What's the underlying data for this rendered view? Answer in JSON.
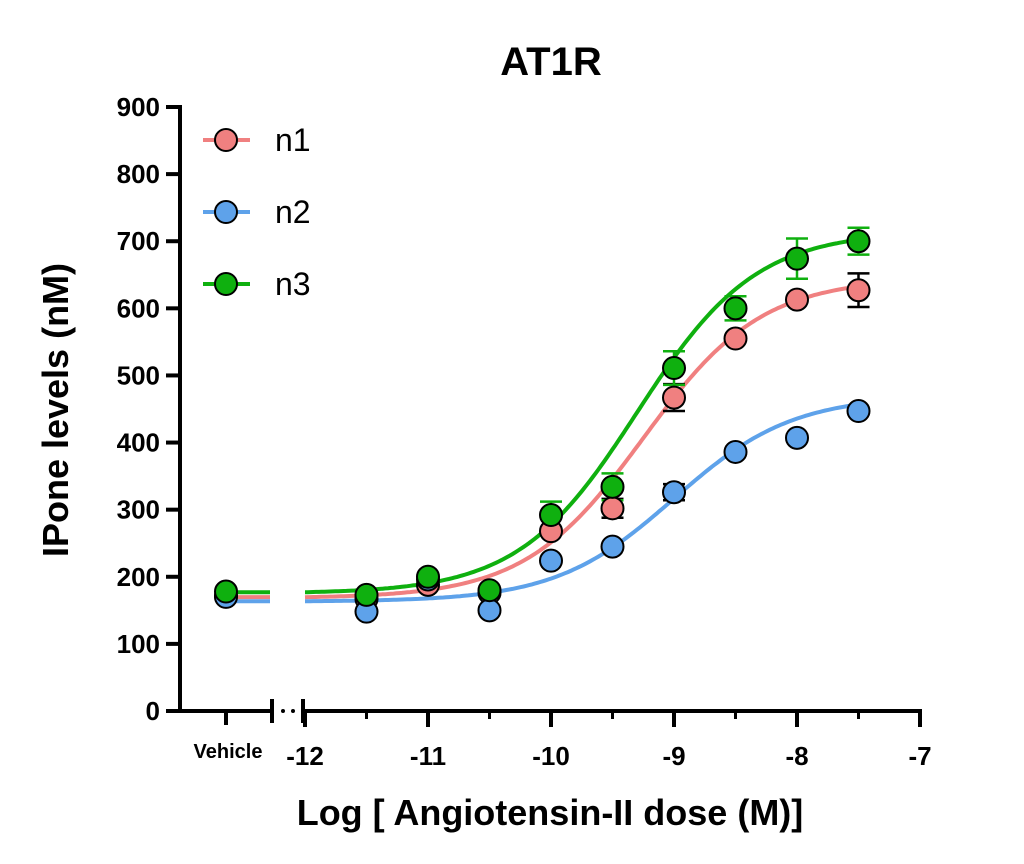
{
  "chart_data": {
    "type": "scatter",
    "title": "AT1R",
    "xlabel": "Log [ Angiotensin-II dose (M)]",
    "ylabel": "IPone levels (nM)",
    "xlim": [
      -12,
      -7
    ],
    "ylim": [
      0,
      900
    ],
    "x_ticks": [
      "-12",
      "-11",
      "-10",
      "-9",
      "-8",
      "-7"
    ],
    "y_ticks": [
      "0",
      "100",
      "200",
      "300",
      "400",
      "500",
      "600",
      "700",
      "800",
      "900"
    ],
    "vehicle_label": "Vehicle",
    "legend_position": "top-left",
    "grid": false,
    "x_doses": [
      -11.5,
      -11,
      -10.5,
      -10,
      -9.5,
      -9,
      -8.5,
      -8,
      -7.5
    ],
    "series": [
      {
        "name": "n1",
        "color": "#f08080",
        "vehicle": 172,
        "values": [
          167,
          188,
          176,
          268,
          302,
          467,
          555,
          613,
          627
        ],
        "errors": [
          0,
          0,
          0,
          0,
          14,
          20,
          0,
          0,
          25
        ],
        "fit": {
          "bottom": 168,
          "top": 645,
          "log_ec50": -9.25,
          "hill": 0.9
        }
      },
      {
        "name": "n2",
        "color": "#5ea2ea",
        "vehicle": 170,
        "values": [
          148,
          196,
          150,
          224,
          245,
          326,
          386,
          407,
          447
        ],
        "errors": [
          0,
          0,
          0,
          0,
          0,
          12,
          0,
          0,
          0
        ],
        "fit": {
          "bottom": 163,
          "top": 470,
          "log_ec50": -9.0,
          "hill": 0.9
        }
      },
      {
        "name": "n3",
        "color": "#0fb00f",
        "vehicle": 178,
        "values": [
          173,
          200,
          180,
          292,
          334,
          511,
          600,
          674,
          700
        ],
        "errors": [
          0,
          0,
          0,
          20,
          20,
          25,
          18,
          30,
          20
        ],
        "fit": {
          "bottom": 175,
          "top": 715,
          "log_ec50": -9.3,
          "hill": 0.9
        }
      }
    ]
  }
}
